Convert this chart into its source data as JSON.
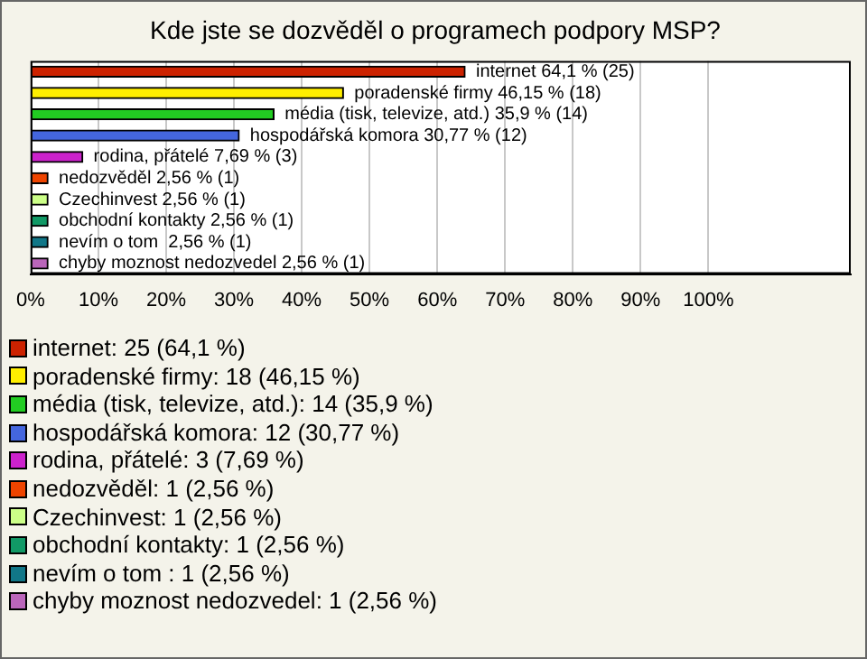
{
  "chart_data": {
    "type": "bar",
    "orientation": "horizontal",
    "title": "Kde jste se dozvěděl o programech podpory MSP?",
    "categories": [
      null,
      null,
      null,
      null,
      null,
      null,
      null,
      null,
      null,
      null
    ],
    "values": [
      64.1,
      46.15,
      35.9,
      30.77,
      7.69,
      2.56,
      2.56,
      2.56,
      2.56,
      2.56
    ],
    "colors": [
      "#cc2200",
      "#ffee00",
      "#22cc22",
      "#4466dd",
      "#cc22cc",
      "#ee4400",
      "#ccff88",
      "#119966",
      "#117788",
      "#bb66bb"
    ],
    "value_labels": [
      "internet 64,1 % (25)",
      "poradenské firmy 46,15 % (18)",
      "média (tisk, televize, atd.) 35,9 % (14)",
      "hospodářská komora 30,77 % (12)",
      "rodina, přátelé 7,69 % (3)",
      "nedozvěděl 2,56 % (1)",
      "Czechinvest 2,56 % (1)",
      "obchodní kontakty 2,56 % (1)",
      "nevím o tom  2,56 % (1)",
      "chyby moznost nedozvedel 2,56 % (1)"
    ],
    "annotations": [
      "internet: 25 (64,1 %)",
      "poradenské firmy: 18 (46,15 %)",
      "média (tisk, televize, atd.): 14 (35,9 %)",
      "hospodářská komora: 12 (30,77 %)",
      "rodina, přátelé: 3 (7,69 %)",
      "nedozvěděl: 1 (2,56 %)",
      "Czechinvest: 1 (2,56 %)",
      "obchodní kontakty: 1 (2,56 %)",
      "nevím o tom : 1 (2,56 %)",
      "chyby moznost nedozvedel: 1 (2,56 %)"
    ],
    "xlim": [
      0,
      121
    ],
    "xticks": [
      {
        "value": 0,
        "label": "0%"
      },
      {
        "value": 10,
        "label": "10%"
      },
      {
        "value": 20,
        "label": "20%"
      },
      {
        "value": 30,
        "label": "30%"
      },
      {
        "value": 40,
        "label": "40%"
      },
      {
        "value": 50,
        "label": "50%"
      },
      {
        "value": 60,
        "label": "60%"
      },
      {
        "value": 70,
        "label": "70%"
      },
      {
        "value": 80,
        "label": "80%"
      },
      {
        "value": 90,
        "label": "90%"
      },
      {
        "value": 100,
        "label": "100%"
      }
    ],
    "tick_labels": "x",
    "grid": "x"
  }
}
